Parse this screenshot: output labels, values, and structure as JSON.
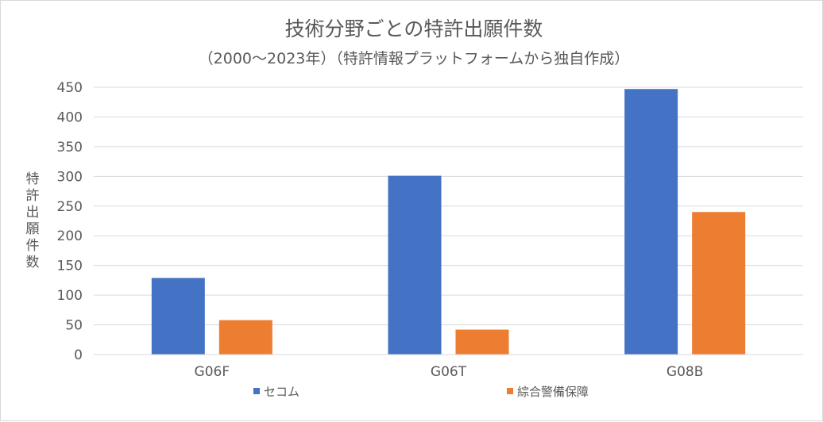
{
  "chart_data": {
    "type": "bar",
    "title": "技術分野ごとの特許出願件数",
    "subtitle": "（2000〜2023年）（特許情報プラットフォームから独自作成）",
    "ylabel": "特許出願件数",
    "xlabel": "",
    "categories": [
      "G06F",
      "G06T",
      "G08B"
    ],
    "series": [
      {
        "name": "セコム",
        "color": "#4472c4",
        "values": [
          129,
          301,
          447
        ]
      },
      {
        "name": "綜合警備保障",
        "color": "#ed7d31",
        "values": [
          58,
          42,
          240
        ]
      }
    ],
    "ylim": [
      0,
      450
    ],
    "yticks": [
      0,
      50,
      100,
      150,
      200,
      250,
      300,
      350,
      400,
      450
    ],
    "grid": true,
    "legend_position": "bottom"
  }
}
